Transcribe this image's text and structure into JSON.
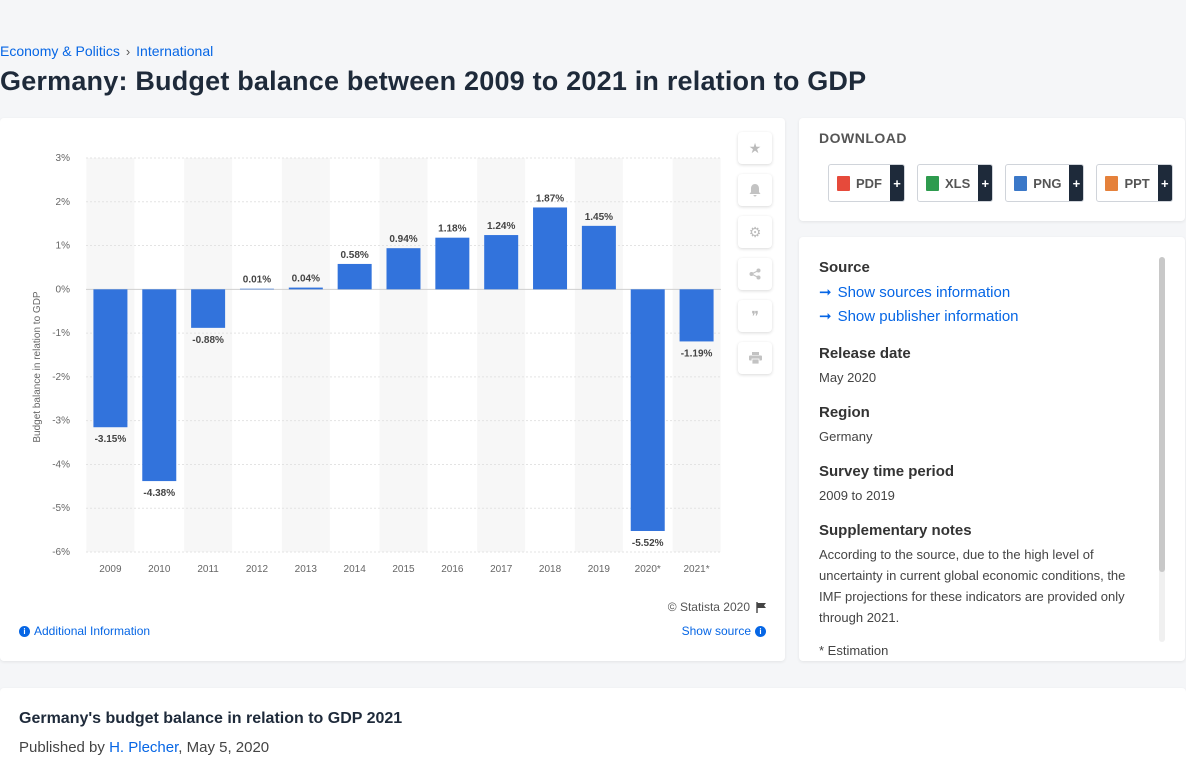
{
  "breadcrumb": {
    "items": [
      "Economy & Politics",
      "International"
    ],
    "separator": "›"
  },
  "title": "Germany: Budget balance between 2009 to 2021 in relation to GDP",
  "chart_data": {
    "type": "bar",
    "categories": [
      "2009",
      "2010",
      "2011",
      "2012",
      "2013",
      "2014",
      "2015",
      "2016",
      "2017",
      "2018",
      "2019",
      "2020*",
      "2021*"
    ],
    "values": [
      -3.15,
      -4.38,
      -0.88,
      0.01,
      0.04,
      0.58,
      0.94,
      1.18,
      1.24,
      1.87,
      1.45,
      -5.52,
      -1.19
    ],
    "value_labels": [
      "-3.15%",
      "-4.38%",
      "-0.88%",
      "0.01%",
      "0.04%",
      "0.58%",
      "0.94%",
      "1.18%",
      "1.24%",
      "1.87%",
      "1.45%",
      "-5.52%",
      "-1.19%"
    ],
    "ylabel": "Budget balance in relation to GDP",
    "yticks": [
      3,
      2,
      1,
      0,
      -1,
      -2,
      -3,
      -4,
      -5,
      -6
    ],
    "ytick_labels": [
      "3%",
      "2%",
      "1%",
      "0%",
      "-1%",
      "-2%",
      "-3%",
      "-4%",
      "-5%",
      "-6%"
    ],
    "ylim": [
      -6,
      3
    ],
    "grid": true,
    "bar_color": "#3273dc"
  },
  "chart_footer": {
    "copyright": "© Statista 2020",
    "additional_info": "Additional Information",
    "show_source": "Show source"
  },
  "download": {
    "title": "DOWNLOAD",
    "formats": [
      "PDF",
      "XLS",
      "PNG",
      "PPT"
    ],
    "plus": "+"
  },
  "meta": {
    "source_h": "Source",
    "show_sources": "Show sources information",
    "show_publisher": "Show publisher information",
    "release_h": "Release date",
    "release_v": "May 2020",
    "region_h": "Region",
    "region_v": "Germany",
    "survey_h": "Survey time period",
    "survey_v": "2009 to 2019",
    "notes_h": "Supplementary notes",
    "notes_v": "According to the source, due to the high level of uncertainty in current global economic conditions, the IMF projections for these indicators are provided only through 2021.",
    "estimation": "* Estimation"
  },
  "bottom": {
    "title": "Germany's budget balance in relation to GDP 2021",
    "published_prefix": "Published by ",
    "author": "H. Plecher",
    "date": ", May 5, 2020"
  }
}
